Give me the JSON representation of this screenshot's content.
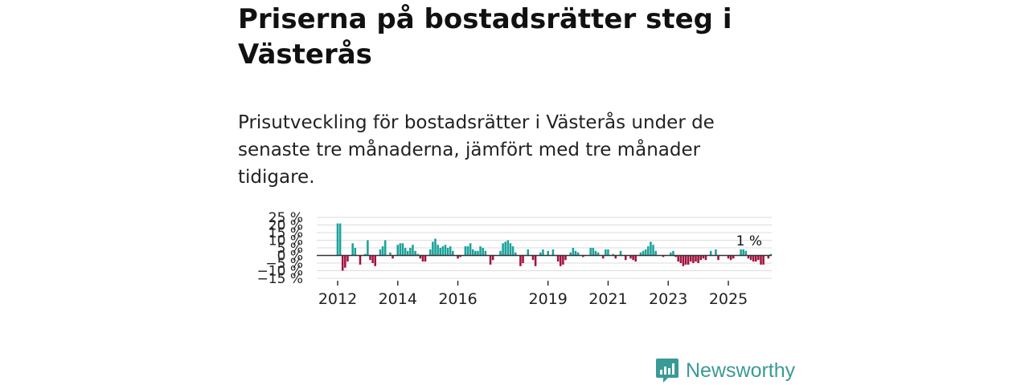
{
  "header": {
    "title": "Priserna på bostadsrätter steg i Västerås",
    "subtitle": "Prisutveckling för bostadsrätter i Västerås under de senaste tre månaderna, jämfört med tre månader tidigare."
  },
  "brand": {
    "name": "Newsworthy",
    "icon": "newsworthy-logo-icon",
    "color": "#3a9a96"
  },
  "colors": {
    "positive": "#1ba39c",
    "negative": "#a3123f",
    "zero_line": "#333333",
    "grid": "#dddddd"
  },
  "chart_data": {
    "type": "bar",
    "title": "Priserna på bostadsrätter steg i Västerås",
    "xlabel": "",
    "ylabel": "",
    "ylim": [
      -15,
      25
    ],
    "yticks": [
      25,
      20,
      15,
      10,
      5,
      0,
      -5,
      -10,
      -15
    ],
    "ytick_labels": [
      "25 %",
      "20 %",
      "15 %",
      "10 %",
      "5 %",
      "0 %",
      "−5 %",
      "−10 %",
      "−15 %"
    ],
    "grid": true,
    "start": {
      "year": 2012,
      "month": 1
    },
    "xtick_labels": [
      "2012",
      "2014",
      "2016",
      "2019",
      "2021",
      "2023",
      "2025"
    ],
    "last_value_label": "1 %",
    "values": [
      21,
      21,
      -10,
      -8,
      -4,
      0,
      8,
      5,
      0,
      -6,
      0,
      1,
      10,
      -3,
      -5,
      -7,
      0,
      4,
      6,
      10,
      0,
      2,
      -2,
      0,
      7,
      8,
      8,
      5,
      3,
      5,
      7,
      3,
      1,
      -2,
      -4,
      -4,
      0,
      4,
      9,
      11,
      7,
      5,
      6,
      7,
      5,
      6,
      3,
      0,
      -2,
      -1,
      0,
      6,
      6,
      8,
      4,
      3,
      3,
      6,
      5,
      3,
      0,
      -6,
      -3,
      0,
      0,
      3,
      8,
      9,
      10,
      8,
      6,
      2,
      0,
      -7,
      -5,
      0,
      4,
      0,
      -3,
      -7,
      0,
      2,
      4,
      0,
      3,
      0,
      4,
      0,
      -4,
      -7,
      -6,
      -3,
      0,
      2,
      5,
      3,
      2,
      0,
      -1,
      0,
      0,
      5,
      5,
      3,
      2,
      0,
      -2,
      4,
      4,
      0,
      1,
      -2,
      0,
      3,
      0,
      -3,
      0,
      -2,
      -3,
      -4,
      0,
      2,
      3,
      4,
      6,
      9,
      7,
      3,
      0,
      0,
      -1,
      0,
      0,
      2,
      3,
      -1,
      -4,
      -5,
      -7,
      -6,
      -6,
      -4,
      -5,
      -4,
      -5,
      -3,
      -2,
      -3,
      0,
      3,
      0,
      4,
      -3,
      0,
      0,
      0,
      -2,
      -3,
      -2,
      0,
      0,
      4,
      4,
      3,
      -2,
      -3,
      -4,
      -4,
      -3,
      -6,
      -6,
      0,
      -2,
      1
    ]
  }
}
